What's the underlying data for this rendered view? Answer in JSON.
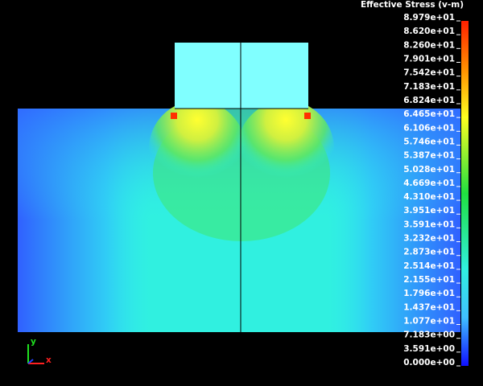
{
  "legend": {
    "title": "Effective Stress (v-m)",
    "labels": [
      "8.979e+01",
      "8.620e+01",
      "8.260e+01",
      "7.901e+01",
      "7.542e+01",
      "7.183e+01",
      "6.824e+01",
      "6.465e+01",
      "6.106e+01",
      "5.746e+01",
      "5.387e+01",
      "5.028e+01",
      "4.669e+01",
      "4.310e+01",
      "3.951e+01",
      "3.591e+01",
      "3.232e+01",
      "2.873e+01",
      "2.514e+01",
      "2.155e+01",
      "1.796e+01",
      "1.437e+01",
      "1.077e+01",
      "7.183e+00",
      "3.591e+00",
      "0.000e+00"
    ]
  },
  "triad": {
    "y": "y",
    "x": "x"
  }
}
